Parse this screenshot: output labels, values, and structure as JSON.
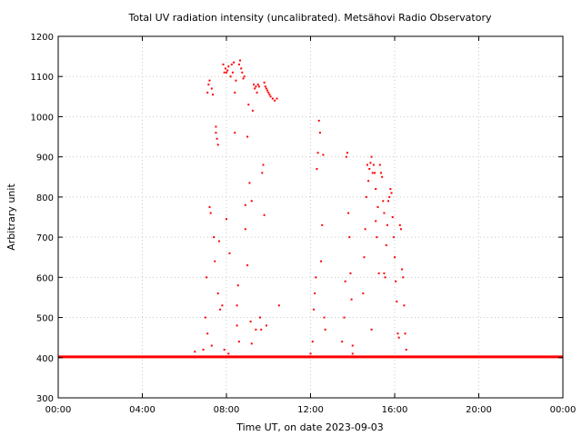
{
  "chart_data": {
    "type": "scatter",
    "title": "Total UV radiation intensity (uncalibrated). Metsähovi Radio Observatory",
    "xlabel": "Time UT, on date 2023-09-03",
    "ylabel": "Arbitrary unit",
    "xlim": [
      0,
      24
    ],
    "ylim": [
      300,
      1200
    ],
    "x_unit": "hours UT",
    "xticks": [
      0,
      4,
      8,
      12,
      16,
      20,
      24
    ],
    "xtick_labels": [
      "00:00",
      "04:00",
      "08:00",
      "12:00",
      "16:00",
      "20:00",
      "00:00"
    ],
    "yticks": [
      300,
      400,
      500,
      600,
      700,
      800,
      900,
      1000,
      1100,
      1200
    ],
    "ytick_labels": [
      "300",
      "400",
      "500",
      "600",
      "700",
      "800",
      "900",
      "1000",
      "1100",
      "1200"
    ],
    "grid": true,
    "series": [
      {
        "color": "#ff0000",
        "baseline": {
          "x_start": 0,
          "x_end": 24,
          "y": 402
        },
        "points": [
          [
            6.5,
            415
          ],
          [
            6.9,
            420
          ],
          [
            7.0,
            500
          ],
          [
            7.05,
            600
          ],
          [
            7.1,
            460
          ],
          [
            7.1,
            1060
          ],
          [
            7.15,
            1080
          ],
          [
            7.2,
            775
          ],
          [
            7.2,
            1090
          ],
          [
            7.25,
            760
          ],
          [
            7.3,
            1070
          ],
          [
            7.35,
            1055
          ],
          [
            7.4,
            700
          ],
          [
            7.45,
            640
          ],
          [
            7.5,
            960
          ],
          [
            7.5,
            975
          ],
          [
            7.55,
            945
          ],
          [
            7.6,
            930
          ],
          [
            7.6,
            560
          ],
          [
            7.65,
            690
          ],
          [
            7.7,
            520
          ],
          [
            7.8,
            530
          ],
          [
            7.85,
            1130
          ],
          [
            7.9,
            1110
          ],
          [
            7.95,
            1120
          ],
          [
            8.0,
            1110
          ],
          [
            8.0,
            745
          ],
          [
            8.05,
            1115
          ],
          [
            8.1,
            1125
          ],
          [
            8.15,
            660
          ],
          [
            8.2,
            1100
          ],
          [
            8.25,
            1130
          ],
          [
            8.3,
            1110
          ],
          [
            8.35,
            1135
          ],
          [
            8.4,
            1060
          ],
          [
            8.4,
            960
          ],
          [
            8.45,
            1090
          ],
          [
            8.5,
            530
          ],
          [
            8.5,
            480
          ],
          [
            8.55,
            580
          ],
          [
            8.6,
            1130
          ],
          [
            8.65,
            1140
          ],
          [
            8.7,
            1120
          ],
          [
            8.75,
            1110
          ],
          [
            8.8,
            1095
          ],
          [
            8.85,
            1100
          ],
          [
            8.9,
            780
          ],
          [
            8.9,
            720
          ],
          [
            9.0,
            950
          ],
          [
            9.0,
            630
          ],
          [
            9.05,
            1030
          ],
          [
            9.1,
            835
          ],
          [
            9.15,
            490
          ],
          [
            9.2,
            790
          ],
          [
            9.25,
            1015
          ],
          [
            9.3,
            1080
          ],
          [
            9.35,
            1070
          ],
          [
            9.4,
            1075
          ],
          [
            9.45,
            1060
          ],
          [
            9.5,
            1080
          ],
          [
            9.55,
            1075
          ],
          [
            9.6,
            500
          ],
          [
            9.65,
            470
          ],
          [
            9.7,
            860
          ],
          [
            9.75,
            880
          ],
          [
            9.8,
            755
          ],
          [
            9.8,
            1085
          ],
          [
            9.85,
            1075
          ],
          [
            9.9,
            1070
          ],
          [
            9.95,
            1065
          ],
          [
            10.0,
            1060
          ],
          [
            10.05,
            1055
          ],
          [
            10.1,
            1050
          ],
          [
            10.2,
            1045
          ],
          [
            10.3,
            1040
          ],
          [
            10.4,
            1045
          ],
          [
            10.5,
            530
          ],
          [
            7.3,
            430
          ],
          [
            7.9,
            420
          ],
          [
            8.1,
            410
          ],
          [
            8.6,
            440
          ],
          [
            9.2,
            435
          ],
          [
            9.4,
            470
          ],
          [
            9.9,
            480
          ],
          [
            12.0,
            410
          ],
          [
            12.1,
            440
          ],
          [
            12.15,
            520
          ],
          [
            12.2,
            560
          ],
          [
            12.25,
            600
          ],
          [
            12.3,
            870
          ],
          [
            12.35,
            910
          ],
          [
            12.4,
            990
          ],
          [
            12.45,
            960
          ],
          [
            12.5,
            640
          ],
          [
            12.55,
            730
          ],
          [
            12.6,
            905
          ],
          [
            12.65,
            500
          ],
          [
            12.7,
            470
          ],
          [
            13.5,
            440
          ],
          [
            13.6,
            500
          ],
          [
            13.65,
            590
          ],
          [
            13.7,
            900
          ],
          [
            13.75,
            910
          ],
          [
            13.8,
            760
          ],
          [
            13.85,
            700
          ],
          [
            13.9,
            610
          ],
          [
            13.95,
            545
          ],
          [
            14.0,
            430
          ],
          [
            14.0,
            410
          ],
          [
            14.5,
            560
          ],
          [
            14.55,
            650
          ],
          [
            14.6,
            720
          ],
          [
            14.65,
            800
          ],
          [
            14.7,
            880
          ],
          [
            14.75,
            840
          ],
          [
            14.8,
            870
          ],
          [
            14.85,
            885
          ],
          [
            14.9,
            900
          ],
          [
            14.95,
            860
          ],
          [
            15.0,
            880
          ],
          [
            15.05,
            860
          ],
          [
            15.1,
            820
          ],
          [
            15.15,
            700
          ],
          [
            15.2,
            775
          ],
          [
            15.25,
            610
          ],
          [
            15.3,
            880
          ],
          [
            15.35,
            860
          ],
          [
            15.4,
            850
          ],
          [
            15.45,
            790
          ],
          [
            15.5,
            760
          ],
          [
            15.55,
            600
          ],
          [
            15.6,
            680
          ],
          [
            15.65,
            730
          ],
          [
            15.7,
            790
          ],
          [
            15.75,
            800
          ],
          [
            15.8,
            820
          ],
          [
            15.85,
            810
          ],
          [
            15.9,
            750
          ],
          [
            15.95,
            700
          ],
          [
            16.0,
            650
          ],
          [
            16.05,
            590
          ],
          [
            16.1,
            540
          ],
          [
            16.15,
            460
          ],
          [
            16.2,
            450
          ],
          [
            16.25,
            730
          ],
          [
            16.3,
            720
          ],
          [
            16.35,
            620
          ],
          [
            16.4,
            600
          ],
          [
            16.45,
            530
          ],
          [
            16.5,
            460
          ],
          [
            16.55,
            420
          ],
          [
            14.9,
            470
          ],
          [
            15.1,
            740
          ],
          [
            15.5,
            610
          ]
        ]
      }
    ]
  }
}
